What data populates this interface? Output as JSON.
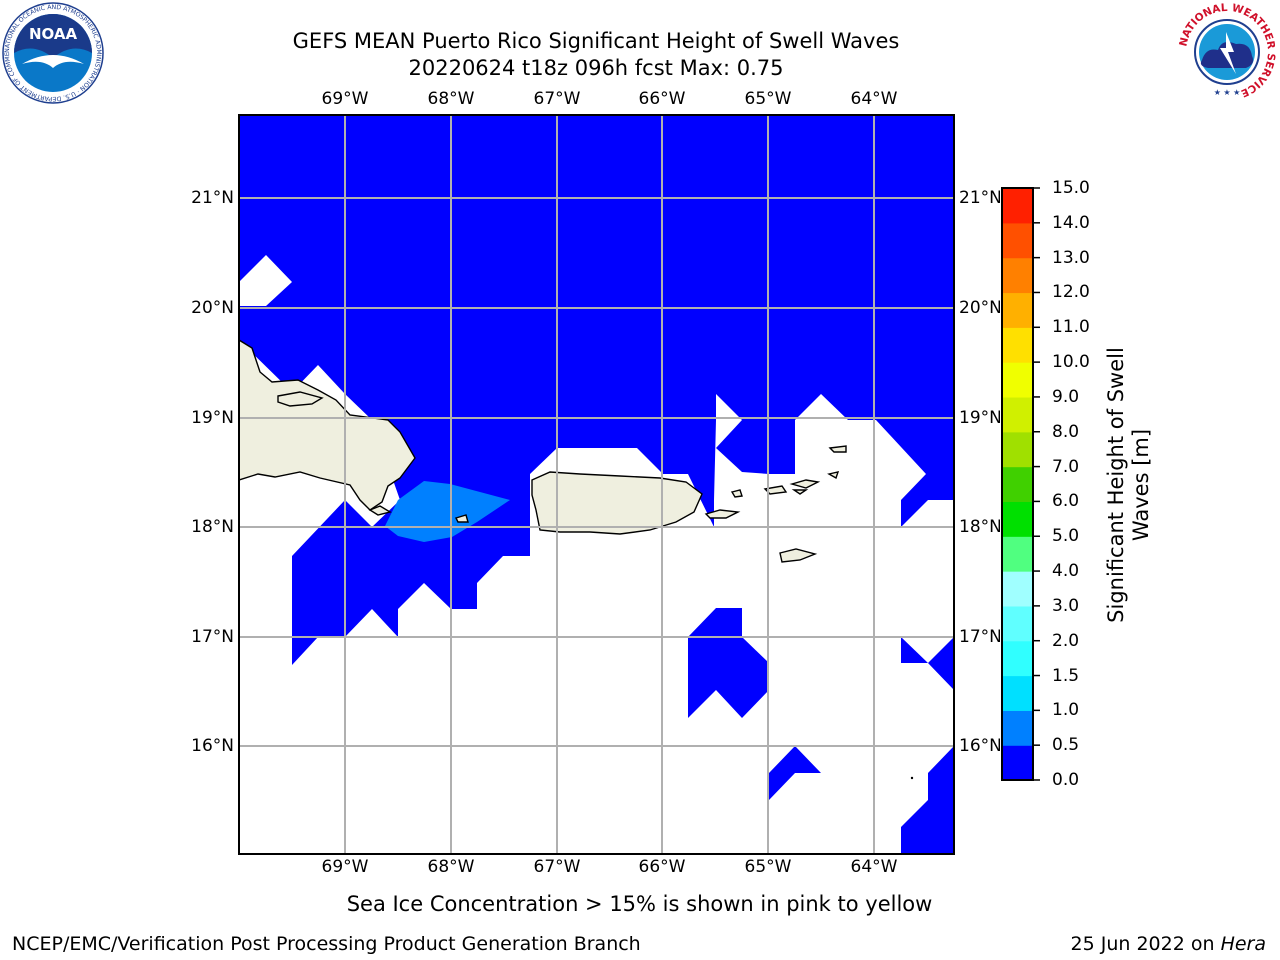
{
  "title": {
    "line1": "GEFS MEAN Puerto Rico Significant Height of Swell Waves",
    "line2": "20220624 t18z 096h fcst   Max: 0.75"
  },
  "map": {
    "lon_labels": [
      "69°W",
      "68°W",
      "67°W",
      "66°W",
      "65°W",
      "64°W"
    ],
    "lat_labels": [
      "21°N",
      "20°N",
      "19°N",
      "18°N",
      "17°N",
      "16°N"
    ],
    "lon_range": [
      -70.0,
      -63.25
    ],
    "lat_range": [
      15.0,
      21.75
    ],
    "colors": {
      "ocean_fill": "#0000ff",
      "swell_0_5": "#0080ff",
      "land": "#efefdf",
      "grid": "#b0b0b0"
    }
  },
  "colorbar": {
    "label": "Significant Height of Swell Waves [m]",
    "label_line1": "Significant Height of Swell",
    "label_line2": "Waves [m]",
    "ticks": [
      "0.0",
      "0.5",
      "1.0",
      "1.5",
      "2.0",
      "3.0",
      "4.0",
      "5.0",
      "6.0",
      "7.0",
      "8.0",
      "9.0",
      "10.0",
      "11.0",
      "12.0",
      "13.0",
      "14.0",
      "15.0"
    ],
    "colors": [
      "#0000ff",
      "#0080ff",
      "#00e0ff",
      "#30ffff",
      "#60ffff",
      "#a0ffff",
      "#50ff80",
      "#00e000",
      "#40d000",
      "#a0e000",
      "#d0f000",
      "#f0ff00",
      "#ffe000",
      "#ffb000",
      "#ff8000",
      "#ff5000",
      "#ff2000"
    ]
  },
  "caption": "Sea Ice Concentration > 15% is shown in pink to yellow",
  "footer": {
    "left": "NCEP/EMC/Verification Post Processing Product Generation Branch",
    "right_date": "25 Jun 2022 on",
    "right_host": "Hera"
  },
  "logos": {
    "noaa": {
      "text": "NOAA",
      "ring": "NATIONAL OCEANIC AND ATMOSPHERIC ADMINISTRATION · U.S. DEPARTMENT OF COMMERCE"
    },
    "nws": {
      "ring": "NATIONAL WEATHER SERVICE"
    }
  }
}
